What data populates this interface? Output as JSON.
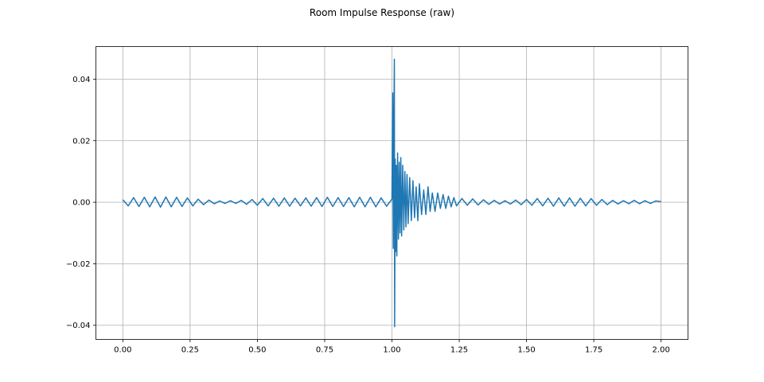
{
  "chart_data": {
    "type": "line",
    "title": "Room Impulse Response (raw)",
    "xlabel": "",
    "ylabel": "",
    "xlim": [
      -0.1,
      2.1
    ],
    "ylim": [
      -0.0446,
      0.0506
    ],
    "grid": true,
    "color": "#1f77b4",
    "grid_color": "#b0b0b0",
    "x_ticks": [
      0.0,
      0.25,
      0.5,
      0.75,
      1.0,
      1.25,
      1.5,
      1.75,
      2.0
    ],
    "x_tick_labels": [
      "0.00",
      "0.25",
      "0.50",
      "0.75",
      "1.00",
      "1.25",
      "1.50",
      "1.75",
      "2.00"
    ],
    "y_ticks": [
      -0.04,
      -0.02,
      0.0,
      0.02,
      0.04
    ],
    "y_tick_labels": [
      "−0.04",
      "−0.02",
      "0.00",
      "0.02",
      "0.04"
    ],
    "series": [
      {
        "points": [
          [
            0.0,
            0.0008
          ],
          [
            0.02,
            -0.0012
          ],
          [
            0.04,
            0.0015
          ],
          [
            0.06,
            -0.0014
          ],
          [
            0.08,
            0.0016
          ],
          [
            0.1,
            -0.0015
          ],
          [
            0.12,
            0.0017
          ],
          [
            0.14,
            -0.0016
          ],
          [
            0.16,
            0.0017
          ],
          [
            0.18,
            -0.0015
          ],
          [
            0.2,
            0.0016
          ],
          [
            0.22,
            -0.0014
          ],
          [
            0.24,
            0.0014
          ],
          [
            0.26,
            -0.0012
          ],
          [
            0.28,
            0.001
          ],
          [
            0.3,
            -0.0008
          ],
          [
            0.32,
            0.0007
          ],
          [
            0.34,
            -0.0005
          ],
          [
            0.36,
            0.0004
          ],
          [
            0.38,
            -0.0004
          ],
          [
            0.4,
            0.0005
          ],
          [
            0.42,
            -0.0004
          ],
          [
            0.44,
            0.0006
          ],
          [
            0.46,
            -0.0007
          ],
          [
            0.48,
            0.0009
          ],
          [
            0.5,
            -0.001
          ],
          [
            0.52,
            0.0012
          ],
          [
            0.54,
            -0.0012
          ],
          [
            0.56,
            0.0013
          ],
          [
            0.58,
            -0.0013
          ],
          [
            0.6,
            0.0014
          ],
          [
            0.62,
            -0.0013
          ],
          [
            0.64,
            0.0013
          ],
          [
            0.66,
            -0.0012
          ],
          [
            0.68,
            0.0014
          ],
          [
            0.7,
            -0.0013
          ],
          [
            0.72,
            0.0015
          ],
          [
            0.74,
            -0.0014
          ],
          [
            0.76,
            0.0016
          ],
          [
            0.78,
            -0.0014
          ],
          [
            0.8,
            0.0015
          ],
          [
            0.82,
            -0.0014
          ],
          [
            0.84,
            0.0015
          ],
          [
            0.86,
            -0.0015
          ],
          [
            0.88,
            0.0016
          ],
          [
            0.9,
            -0.0015
          ],
          [
            0.92,
            0.0016
          ],
          [
            0.94,
            -0.0015
          ],
          [
            0.96,
            0.0014
          ],
          [
            0.98,
            -0.0013
          ],
          [
            1.0,
            0.001
          ],
          [
            1.003,
            0.0355
          ],
          [
            1.005,
            -0.015
          ],
          [
            1.007,
            0.023
          ],
          [
            1.009,
            0.0465
          ],
          [
            1.01,
            -0.0405
          ],
          [
            1.012,
            0.014
          ],
          [
            1.014,
            -0.016
          ],
          [
            1.016,
            0.012
          ],
          [
            1.018,
            -0.0175
          ],
          [
            1.021,
            0.016
          ],
          [
            1.024,
            -0.012
          ],
          [
            1.027,
            0.013
          ],
          [
            1.03,
            -0.01
          ],
          [
            1.033,
            0.0145
          ],
          [
            1.036,
            -0.011
          ],
          [
            1.04,
            0.012
          ],
          [
            1.044,
            -0.009
          ],
          [
            1.048,
            0.01
          ],
          [
            1.052,
            -0.008
          ],
          [
            1.056,
            0.009
          ],
          [
            1.06,
            -0.007
          ],
          [
            1.066,
            0.008
          ],
          [
            1.072,
            -0.006
          ],
          [
            1.078,
            0.007
          ],
          [
            1.084,
            -0.005
          ],
          [
            1.09,
            0.005
          ],
          [
            1.096,
            -0.006
          ],
          [
            1.102,
            0.006
          ],
          [
            1.11,
            -0.004
          ],
          [
            1.118,
            0.004
          ],
          [
            1.126,
            -0.004
          ],
          [
            1.134,
            0.005
          ],
          [
            1.142,
            -0.003
          ],
          [
            1.15,
            0.003
          ],
          [
            1.16,
            -0.003
          ],
          [
            1.17,
            0.003
          ],
          [
            1.18,
            -0.002
          ],
          [
            1.19,
            0.0025
          ],
          [
            1.2,
            -0.002
          ],
          [
            1.21,
            0.002
          ],
          [
            1.22,
            -0.0015
          ],
          [
            1.23,
            0.0015
          ],
          [
            1.24,
            -0.0012
          ],
          [
            1.26,
            0.0012
          ],
          [
            1.28,
            -0.001
          ],
          [
            1.3,
            0.0011
          ],
          [
            1.32,
            -0.0009
          ],
          [
            1.34,
            0.0008
          ],
          [
            1.36,
            -0.0007
          ],
          [
            1.38,
            0.0006
          ],
          [
            1.4,
            -0.0006
          ],
          [
            1.42,
            0.0005
          ],
          [
            1.44,
            -0.0006
          ],
          [
            1.46,
            0.0007
          ],
          [
            1.48,
            -0.0008
          ],
          [
            1.5,
            0.0009
          ],
          [
            1.52,
            -0.001
          ],
          [
            1.54,
            0.0012
          ],
          [
            1.56,
            -0.0012
          ],
          [
            1.58,
            0.0013
          ],
          [
            1.6,
            -0.0013
          ],
          [
            1.62,
            0.0014
          ],
          [
            1.64,
            -0.0013
          ],
          [
            1.66,
            0.0014
          ],
          [
            1.68,
            -0.0013
          ],
          [
            1.7,
            0.0013
          ],
          [
            1.72,
            -0.0012
          ],
          [
            1.74,
            0.0012
          ],
          [
            1.76,
            -0.001
          ],
          [
            1.78,
            0.0009
          ],
          [
            1.8,
            -0.0008
          ],
          [
            1.82,
            0.0006
          ],
          [
            1.84,
            -0.0006
          ],
          [
            1.86,
            0.0005
          ],
          [
            1.88,
            -0.0005
          ],
          [
            1.9,
            0.0006
          ],
          [
            1.92,
            -0.0005
          ],
          [
            1.94,
            0.0005
          ],
          [
            1.96,
            -0.0004
          ],
          [
            1.98,
            0.0004
          ],
          [
            2.0,
            0.0002
          ]
        ]
      }
    ]
  }
}
